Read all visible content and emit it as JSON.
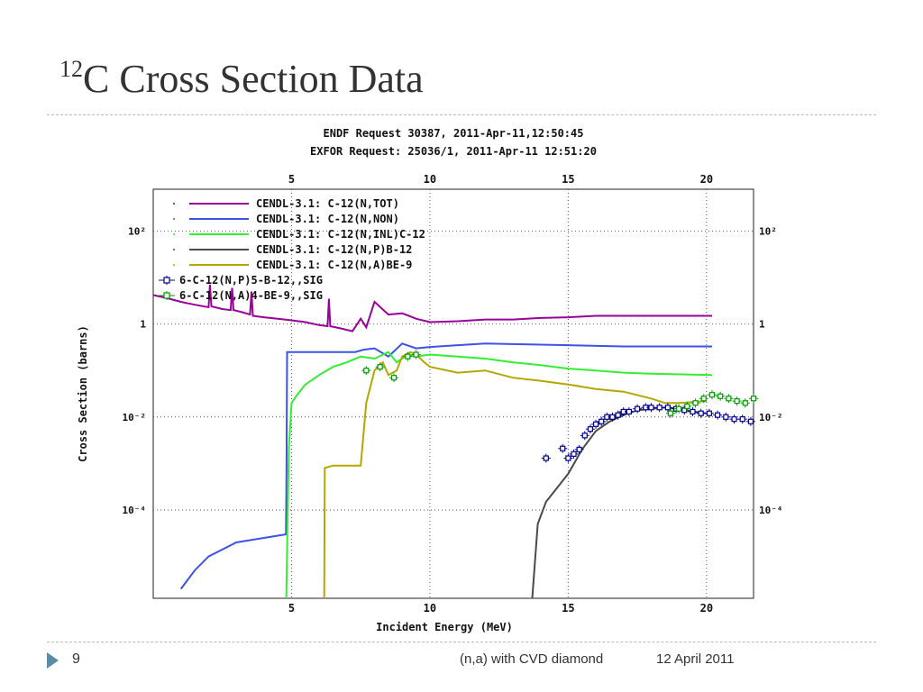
{
  "slide": {
    "title_sup": "12",
    "title_rest": "C Cross Section Data",
    "page_number": "9",
    "footer_subject": "(n,a) with CVD diamond",
    "footer_date": "12 April 2011"
  },
  "chart_data": {
    "type": "line",
    "header_lines": [
      "ENDF Request 30387, 2011-Apr-11,12:50:45",
      "EXFOR Request: 25036/1, 2011-Apr-11 12:51:20"
    ],
    "xlabel": "Incident Energy (MeV)",
    "ylabel": "Cross Section (barns)",
    "xlim": [
      0,
      21.7
    ],
    "ylim_log10": [
      -5.9,
      2.9
    ],
    "x_ticks": [
      "5",
      "10",
      "15",
      "20"
    ],
    "y_ticks": [
      {
        "exp": 2,
        "label": "10²"
      },
      {
        "exp": 0,
        "label": "1"
      },
      {
        "exp": -2,
        "label": "10⁻²"
      },
      {
        "exp": -4,
        "label": "10⁻⁴"
      }
    ],
    "grid": true,
    "legend_position": "top-left",
    "colors": {
      "tot": "#990099",
      "non": "#3d52e6",
      "inl": "#33ee33",
      "p": "#4a4a4a",
      "a": "#b3a700",
      "exp_p": "#00008b",
      "exp_a": "#009900"
    },
    "series": [
      {
        "name": "CENDL-3.1: C-12(N,TOT)",
        "key": "tot",
        "x": [
          0.0,
          0.5,
          1,
          1.5,
          2,
          2.05,
          2.1,
          2.5,
          2.8,
          2.85,
          2.9,
          3.2,
          3.5,
          3.55,
          3.6,
          4,
          4.5,
          5,
          5.5,
          6.0,
          6.3,
          6.35,
          6.4,
          6.8,
          7.2,
          7.5,
          7.7,
          8,
          8.5,
          9,
          9.5,
          10,
          11,
          12,
          13,
          14,
          15,
          16,
          17,
          18,
          19,
          20.2
        ],
        "y": [
          4.2,
          3.6,
          3.0,
          2.6,
          2.3,
          7.0,
          2.4,
          2.1,
          2.0,
          6.0,
          2.0,
          1.8,
          1.6,
          5.0,
          1.5,
          1.4,
          1.3,
          1.2,
          1.1,
          0.95,
          0.9,
          3.5,
          0.9,
          0.8,
          0.7,
          1.3,
          0.85,
          3.0,
          1.6,
          1.7,
          1.3,
          1.1,
          1.15,
          1.25,
          1.25,
          1.35,
          1.4,
          1.5,
          1.5,
          1.5,
          1.5,
          1.5
        ]
      },
      {
        "name": "CENDL-3.1: C-12(N,NON)",
        "key": "non",
        "x": [
          1.0,
          1.5,
          2,
          3,
          4,
          4.8,
          4.82,
          4.84,
          7.3,
          7.6,
          8,
          8.5,
          9,
          9.5,
          10,
          11,
          12,
          15,
          17,
          20.2
        ],
        "y": [
          2e-06,
          5e-06,
          1e-05,
          2e-05,
          2.5e-05,
          3e-05,
          0.001,
          0.25,
          0.25,
          0.28,
          0.3,
          0.2,
          0.38,
          0.3,
          0.32,
          0.35,
          0.38,
          0.35,
          0.33,
          0.33
        ]
      },
      {
        "name": "CENDL-3.1: C-12(N,INL)C-12",
        "key": "inl",
        "x": [
          4.81,
          4.9,
          5.0,
          5.2,
          5.5,
          6,
          6.5,
          7,
          7.5,
          8,
          8.5,
          8.8,
          9.2,
          9.5,
          10,
          11,
          12,
          13,
          14,
          15,
          16,
          17,
          18,
          20.2
        ],
        "y": [
          1e-06,
          0.002,
          0.02,
          0.03,
          0.05,
          0.08,
          0.12,
          0.15,
          0.2,
          0.18,
          0.25,
          0.15,
          0.22,
          0.2,
          0.22,
          0.2,
          0.18,
          0.15,
          0.13,
          0.11,
          0.1,
          0.09,
          0.085,
          0.08
        ]
      },
      {
        "name": "CENDL-3.1: C-12(N,P)B-12",
        "key": "p",
        "x": [
          13.7,
          13.9,
          14.2,
          14.6,
          15.0,
          15.5,
          16.0,
          16.5,
          17.0,
          17.5,
          18.0,
          18.5,
          19.0,
          19.5,
          20.0
        ],
        "y": [
          1e-06,
          5e-05,
          0.00015,
          0.0003,
          0.0006,
          0.002,
          0.005,
          0.008,
          0.011,
          0.014,
          0.015,
          0.016,
          0.015,
          0.013,
          0.012
        ]
      },
      {
        "name": "CENDL-3.1: C-12(N,A)BE-9",
        "key": "a",
        "x": [
          6.18,
          6.2,
          6.5,
          7.0,
          7.5,
          7.7,
          8.0,
          8.3,
          8.5,
          8.8,
          9.0,
          9.3,
          9.5,
          9.8,
          10,
          11,
          12,
          13,
          14,
          15,
          16,
          17,
          18,
          18.5,
          19,
          20
        ],
        "y": [
          1e-06,
          0.0008,
          0.0009,
          0.0009,
          0.0009,
          0.02,
          0.1,
          0.15,
          0.08,
          0.1,
          0.2,
          0.25,
          0.22,
          0.15,
          0.12,
          0.09,
          0.1,
          0.07,
          0.06,
          0.05,
          0.04,
          0.035,
          0.025,
          0.02,
          0.02,
          0.022
        ]
      },
      {
        "name": "6-C-12(N,P)5-B-12,,SIG",
        "key": "exp_p",
        "marker": true,
        "x": [
          14.2,
          14.8,
          15.0,
          15.2,
          15.4,
          15.6,
          15.8,
          16.0,
          16.2,
          16.4,
          16.6,
          16.8,
          17.0,
          17.2,
          17.5,
          17.8,
          18.0,
          18.3,
          18.6,
          18.9,
          19.2,
          19.5,
          19.8,
          20.1,
          20.4,
          20.7,
          21.0,
          21.3,
          21.6
        ],
        "y": [
          0.0013,
          0.0021,
          0.0013,
          0.0016,
          0.002,
          0.004,
          0.0055,
          0.007,
          0.008,
          0.01,
          0.01,
          0.011,
          0.013,
          0.013,
          0.015,
          0.016,
          0.016,
          0.016,
          0.016,
          0.015,
          0.014,
          0.013,
          0.012,
          0.012,
          0.011,
          0.01,
          0.009,
          0.009,
          0.008
        ]
      },
      {
        "name": "6-C-12(N,A)4-BE-9,,SIG",
        "key": "exp_a",
        "marker": true,
        "x": [
          7.7,
          8.2,
          8.7,
          9.2,
          9.5,
          18.7,
          19.0,
          19.3,
          19.6,
          19.9,
          20.2,
          20.5,
          20.8,
          21.1,
          21.4,
          21.7
        ],
        "y": [
          0.1,
          0.12,
          0.07,
          0.2,
          0.22,
          0.012,
          0.015,
          0.017,
          0.02,
          0.025,
          0.03,
          0.028,
          0.025,
          0.022,
          0.02,
          0.025
        ]
      }
    ]
  }
}
